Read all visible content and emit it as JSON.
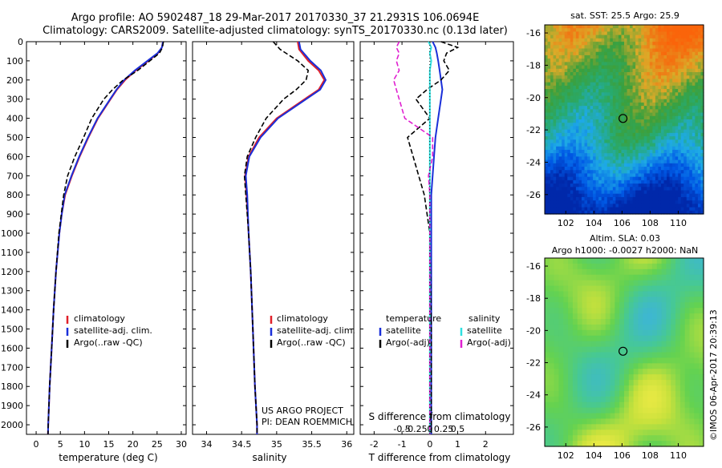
{
  "title": {
    "line1": "Argo profile: AO 5902487_18 29-Mar-2017 20170330_37 21.2931S 106.0694E",
    "line2": "Climatology: CARS2009. Satellite-adjusted climatology: synTS_20170330.nc (0.13d later)"
  },
  "colors": {
    "clim": "#e0202a",
    "sat": "#1a2fd9",
    "argo": "#000000",
    "sat_s": "#2fe0e0",
    "argo_s": "#e020d0"
  },
  "depth_axis": {
    "ylim": [
      0,
      2050
    ],
    "ticks": [
      0,
      100,
      200,
      300,
      400,
      500,
      600,
      700,
      800,
      900,
      1000,
      1100,
      1200,
      1300,
      1400,
      1500,
      1600,
      1700,
      1800,
      1900,
      2000
    ]
  },
  "chart_data": [
    {
      "type": "line",
      "name": "temperature",
      "xlabel": "temperature (deg C)",
      "xlim": [
        -2,
        31
      ],
      "xticks": [
        0,
        5,
        10,
        15,
        20,
        25,
        30
      ],
      "legend": [
        "climatology",
        "satellite-adj. clim.",
        "Argo(..raw -QC)"
      ],
      "depth": [
        0,
        30,
        60,
        100,
        150,
        200,
        250,
        300,
        400,
        500,
        600,
        700,
        800,
        900,
        1000,
        1200,
        1400,
        1600,
        1800,
        2000,
        2050
      ],
      "series": [
        {
          "name": "climatology",
          "style": "solid",
          "color": "clim",
          "values": [
            26.2,
            26.0,
            25.2,
            23.2,
            20.6,
            18.4,
            16.7,
            15.4,
            12.8,
            10.8,
            9.0,
            7.4,
            6.0,
            5.3,
            4.8,
            4.1,
            3.6,
            3.2,
            2.8,
            2.5,
            2.45
          ]
        },
        {
          "name": "satellite-adj. clim.",
          "style": "solid",
          "color": "sat",
          "values": [
            26.2,
            26.0,
            25.1,
            23.0,
            20.4,
            18.2,
            16.6,
            15.3,
            12.7,
            10.7,
            8.9,
            7.3,
            5.9,
            5.3,
            4.8,
            4.1,
            3.6,
            3.2,
            2.8,
            2.5,
            2.45
          ]
        },
        {
          "name": "Argo(..raw -QC)",
          "style": "dash",
          "color": "argo",
          "values": [
            26.3,
            26.1,
            25.5,
            23.5,
            21.0,
            18.0,
            15.8,
            14.0,
            11.5,
            9.8,
            8.0,
            6.5,
            5.7,
            5.2,
            4.7,
            4.1,
            3.6,
            3.2,
            2.8,
            2.5,
            2.45
          ]
        }
      ]
    },
    {
      "type": "line",
      "name": "salinity",
      "xlabel": "salinity",
      "xlim": [
        33.8,
        36.1
      ],
      "xticks": [
        34,
        34.5,
        35,
        35.5,
        36
      ],
      "legend": [
        "climatology",
        "satellite-adj. clim.",
        "Argo(..raw -QC)"
      ],
      "depth": [
        0,
        40,
        100,
        150,
        200,
        250,
        300,
        400,
        500,
        600,
        700,
        800,
        1000,
        1200,
        1500,
        1800,
        2000,
        2050
      ],
      "series": [
        {
          "name": "climatology",
          "style": "solid",
          "color": "clim",
          "values": [
            35.3,
            35.32,
            35.45,
            35.6,
            35.68,
            35.6,
            35.4,
            35.0,
            34.75,
            34.6,
            34.55,
            34.57,
            34.6,
            34.63,
            34.66,
            34.69,
            34.72,
            34.72
          ]
        },
        {
          "name": "satellite-adj. clim.",
          "style": "solid",
          "color": "sat",
          "values": [
            35.32,
            35.34,
            35.48,
            35.63,
            35.7,
            35.62,
            35.42,
            35.02,
            34.77,
            34.61,
            34.56,
            34.58,
            34.6,
            34.63,
            34.66,
            34.69,
            34.72,
            34.72
          ]
        },
        {
          "name": "Argo(..raw -QC)",
          "style": "dash",
          "color": "argo",
          "values": [
            34.95,
            35.05,
            35.3,
            35.45,
            35.42,
            35.28,
            35.1,
            34.85,
            34.7,
            34.58,
            34.54,
            34.56,
            34.6,
            34.63,
            34.66,
            34.69,
            34.72,
            34.72
          ]
        }
      ],
      "annotation": [
        "US ARGO PROJECT",
        "PI: DEAN ROEMMICH"
      ]
    },
    {
      "type": "line",
      "name": "differences",
      "xlabel": "T difference from climatology",
      "xlim": [
        -2.5,
        3
      ],
      "xticks": [
        -2,
        -1,
        0,
        1,
        2
      ],
      "xlabel2": "S difference from climatology",
      "xticks2": [
        "-0.5",
        "-0.25",
        "0",
        "0.25",
        "0.5"
      ],
      "legend": {
        "col1_title": "temperature",
        "col2_title": "salinity",
        "items": [
          "satellite",
          "Argo(-adj)",
          "satellite",
          "Argo(-adj)"
        ]
      },
      "depth": [
        0,
        30,
        60,
        100,
        150,
        200,
        250,
        300,
        400,
        500,
        600,
        700,
        800,
        1000,
        1500,
        2000,
        2050
      ],
      "series": [
        {
          "name": "T satellite",
          "style": "solid",
          "color": "sat",
          "values": [
            0.1,
            0.2,
            0.25,
            0.3,
            0.35,
            0.4,
            0.45,
            0.4,
            0.3,
            0.2,
            0.15,
            0.1,
            0.05,
            0.05,
            0.05,
            0.05,
            0.05
          ]
        },
        {
          "name": "T Argo(-adj)",
          "style": "dash",
          "color": "argo",
          "values": [
            0.4,
            1.0,
            0.6,
            0.5,
            0.7,
            0.4,
            -0.1,
            -0.5,
            0.0,
            -0.8,
            -0.6,
            -0.4,
            -0.2,
            0.0,
            0.05,
            0.05,
            0.05
          ]
        },
        {
          "name": "S satellite",
          "style": "solid",
          "color": "sat_s",
          "values": [
            -0.05,
            0.05,
            0.0,
            0.05,
            0.0,
            0.0,
            0.0,
            0.0,
            0.0,
            0.0,
            0.0,
            0.0,
            0.0,
            0.0,
            0.0,
            0.0,
            0.0
          ]
        },
        {
          "name": "S Argo(-adj)",
          "style": "dash",
          "color": "argo_s",
          "values": [
            -1.1,
            -1.2,
            -1.1,
            -1.2,
            -1.1,
            -1.3,
            -1.2,
            -1.1,
            -0.9,
            0.1,
            0.1,
            -0.05,
            0.0,
            0.0,
            0.0,
            0.0,
            0.0
          ]
        }
      ]
    },
    {
      "type": "heatmap",
      "name": "sst_map",
      "title": "sat. SST: 25.5  Argo: 25.9",
      "xlim": [
        100.5,
        111.8
      ],
      "ylim": [
        -27.2,
        -15.5
      ],
      "xticks": [
        102,
        104,
        106,
        108,
        110
      ],
      "yticks": [
        -16,
        -18,
        -20,
        -22,
        -24,
        -26
      ],
      "marker": {
        "lon": 106.07,
        "lat": -21.29
      }
    },
    {
      "type": "heatmap",
      "name": "sla_map",
      "title": "Altim. SLA: 0.03",
      "subtitle": "Argo h1000: -0.0027  h2000: NaN",
      "xlim": [
        100.5,
        111.8
      ],
      "ylim": [
        -27.2,
        -15.5
      ],
      "xticks": [
        102,
        104,
        106,
        108,
        110
      ],
      "yticks": [
        -16,
        -18,
        -20,
        -22,
        -24,
        -26
      ],
      "marker": {
        "lon": 106.07,
        "lat": -21.29
      }
    }
  ],
  "credit": "©IMOS 06-Apr-2017 20:39:13"
}
